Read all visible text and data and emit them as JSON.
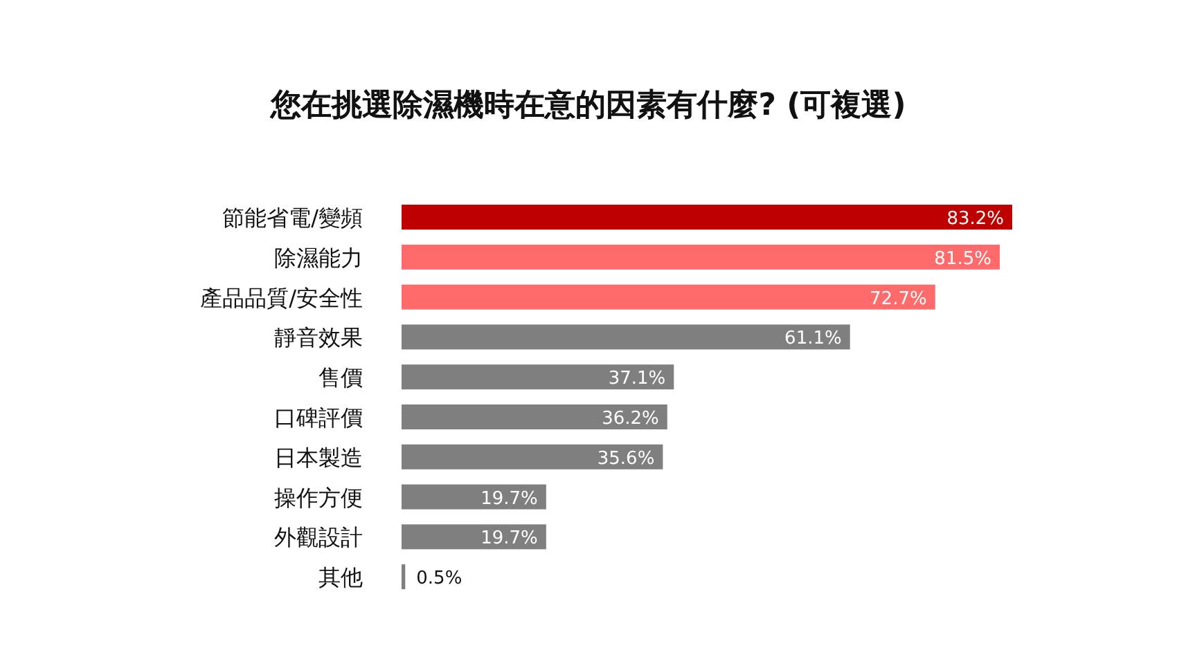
{
  "chart_data": {
    "type": "bar",
    "orientation": "horizontal",
    "title": "您在挑選除濕機時在意的因素有什麼? (可複選)",
    "categories": [
      "節能省電/變頻",
      "除濕能力",
      "產品品質/安全性",
      "靜音效果",
      "售價",
      "口碑評價",
      "日本製造",
      "操作方便",
      "外觀設計",
      "其他"
    ],
    "values": [
      83.2,
      81.5,
      72.7,
      61.1,
      37.1,
      36.2,
      35.6,
      19.7,
      19.7,
      0.5
    ],
    "value_labels": [
      "83.2%",
      "81.5%",
      "72.7%",
      "61.1%",
      "37.1%",
      "36.2%",
      "35.6%",
      "19.7%",
      "19.7%",
      "0.5%"
    ],
    "colors": [
      "#bf0000",
      "#ff6b6b",
      "#ff6b6b",
      "#7f7f7f",
      "#7f7f7f",
      "#7f7f7f",
      "#7f7f7f",
      "#7f7f7f",
      "#7f7f7f",
      "#7f7f7f"
    ]
  }
}
